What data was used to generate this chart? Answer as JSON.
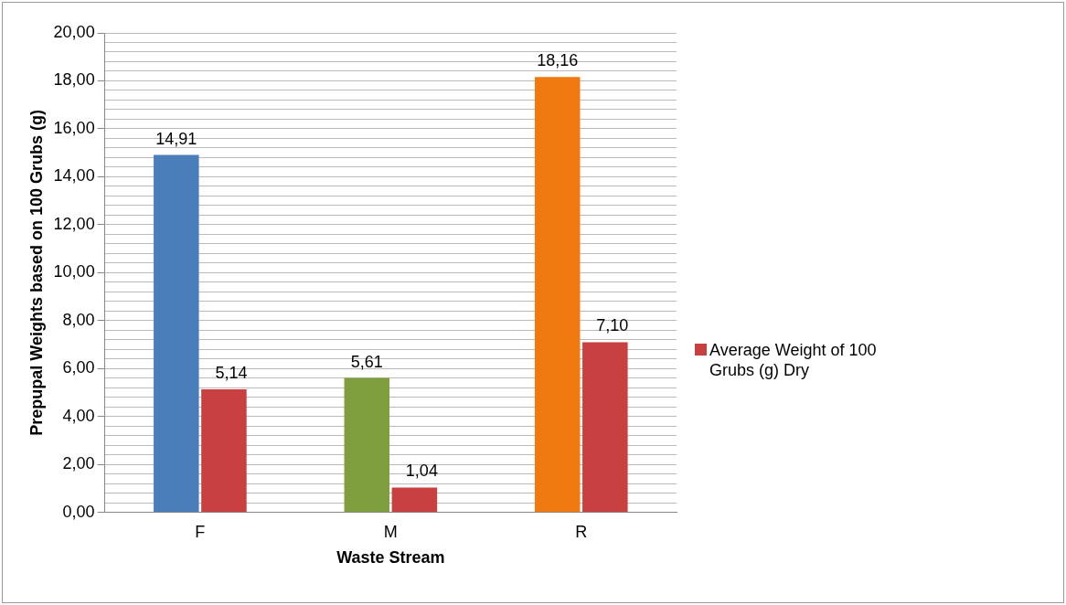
{
  "chart_data": {
    "type": "bar",
    "xlabel": "Waste Stream",
    "ylabel": "Prepupal Weights based on 100 Grubs (g)",
    "categories": [
      "F",
      "M",
      "R"
    ],
    "series": [
      {
        "colors": [
          "#4a7ebb",
          "#7f9f3f",
          "#f07a10"
        ],
        "values": [
          14.91,
          5.61,
          18.16
        ],
        "value_labels": [
          "14,91",
          "5,61",
          "18,16"
        ]
      },
      {
        "name": "Average Weight of 100 Grubs (g) Dry",
        "color": "#c8403f",
        "values": [
          5.14,
          1.04,
          7.1
        ],
        "value_labels": [
          "5,14",
          "1,04",
          "7,10"
        ]
      }
    ],
    "ylim": [
      0,
      20
    ],
    "yticks": [
      {
        "value": 0,
        "label": "0,00"
      },
      {
        "value": 0.4,
        "label": null
      },
      {
        "value": 0.8,
        "label": null
      },
      {
        "value": 1.2,
        "label": null
      },
      {
        "value": 1.6,
        "label": null
      },
      {
        "value": 2,
        "label": "2,00"
      },
      {
        "value": 2.4,
        "label": null
      },
      {
        "value": 2.8,
        "label": null
      },
      {
        "value": 3.2,
        "label": null
      },
      {
        "value": 3.6,
        "label": null
      },
      {
        "value": 4,
        "label": "4,00"
      },
      {
        "value": 4.4,
        "label": null
      },
      {
        "value": 4.8,
        "label": null
      },
      {
        "value": 5.2,
        "label": null
      },
      {
        "value": 5.6,
        "label": null
      },
      {
        "value": 6,
        "label": "6,00"
      },
      {
        "value": 6.4,
        "label": null
      },
      {
        "value": 6.8,
        "label": null
      },
      {
        "value": 7.2,
        "label": null
      },
      {
        "value": 7.6,
        "label": null
      },
      {
        "value": 8,
        "label": "8,00"
      },
      {
        "value": 8.4,
        "label": null
      },
      {
        "value": 8.8,
        "label": null
      },
      {
        "value": 9.2,
        "label": null
      },
      {
        "value": 9.6,
        "label": null
      },
      {
        "value": 10,
        "label": "10,00"
      },
      {
        "value": 10.4,
        "label": null
      },
      {
        "value": 10.8,
        "label": null
      },
      {
        "value": 11.2,
        "label": null
      },
      {
        "value": 11.6,
        "label": null
      },
      {
        "value": 12,
        "label": "12,00"
      },
      {
        "value": 12.4,
        "label": null
      },
      {
        "value": 12.8,
        "label": null
      },
      {
        "value": 13.2,
        "label": null
      },
      {
        "value": 13.6,
        "label": null
      },
      {
        "value": 14,
        "label": "14,00"
      },
      {
        "value": 14.4,
        "label": null
      },
      {
        "value": 14.8,
        "label": null
      },
      {
        "value": 15.2,
        "label": null
      },
      {
        "value": 15.6,
        "label": null
      },
      {
        "value": 16,
        "label": "16,00"
      },
      {
        "value": 16.4,
        "label": null
      },
      {
        "value": 16.8,
        "label": null
      },
      {
        "value": 17.2,
        "label": null
      },
      {
        "value": 17.6,
        "label": null
      },
      {
        "value": 18,
        "label": "18,00"
      },
      {
        "value": 18.4,
        "label": null
      },
      {
        "value": 18.8,
        "label": null
      },
      {
        "value": 19.2,
        "label": null
      },
      {
        "value": 19.6,
        "label": null
      },
      {
        "value": 20,
        "label": "20,00"
      }
    ],
    "grid": "y",
    "legend": "right"
  }
}
